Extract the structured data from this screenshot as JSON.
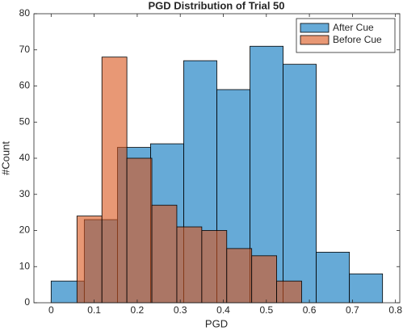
{
  "chart_data": {
    "type": "histogram",
    "title": "PGD Distribution of Trial 50",
    "xlabel": "PGD",
    "ylabel": "#Count",
    "series": [
      {
        "name": "After Cue",
        "color": "#0072bd",
        "bins": [
          0,
          0.077,
          0.154,
          0.231,
          0.308,
          0.385,
          0.462,
          0.539,
          0.616,
          0.693,
          0.77
        ],
        "values": [
          6,
          23,
          43,
          44,
          67,
          59,
          71,
          66,
          14,
          8
        ]
      },
      {
        "name": "Before Cue",
        "color": "#d95319",
        "bins": [
          0.06,
          0.118,
          0.176,
          0.234,
          0.292,
          0.35,
          0.408,
          0.466,
          0.524,
          0.582
        ],
        "values": [
          24,
          68,
          40,
          27,
          21,
          20,
          15,
          13,
          6
        ]
      }
    ],
    "xlim": [
      -0.04,
      0.81
    ],
    "xticks": [
      0,
      0.1,
      0.2,
      0.3,
      0.4,
      0.5,
      0.6,
      0.7,
      0.8
    ],
    "ylim": [
      0,
      80
    ],
    "yticks": [
      0,
      10,
      20,
      30,
      40,
      50,
      60,
      70,
      80
    ],
    "legend": "northeast"
  }
}
